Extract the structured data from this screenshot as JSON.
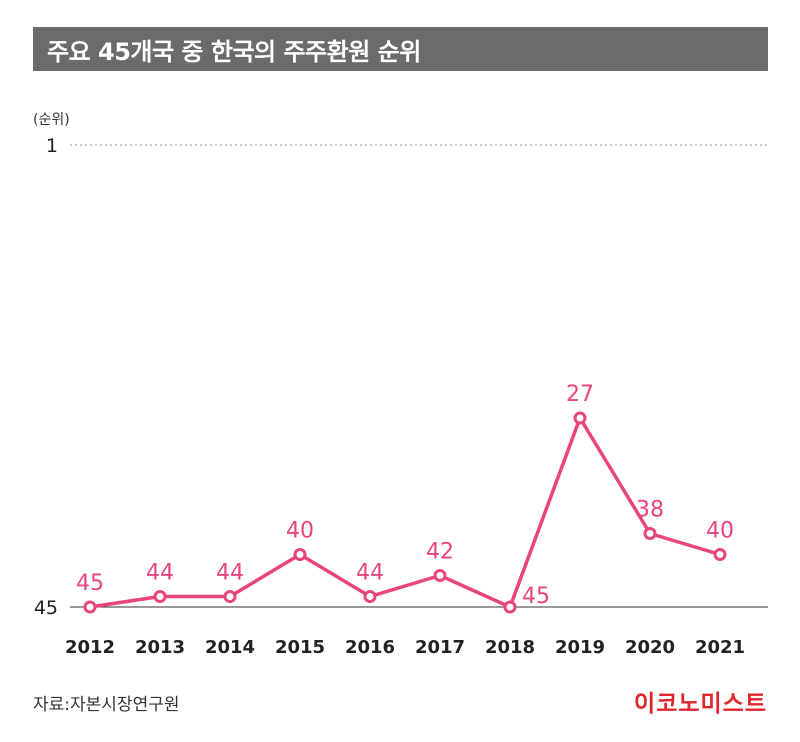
{
  "title": "주요 45개국 중 한국의 주주환원 순위",
  "source": "자료:자본시장연구원",
  "brand": "이코노미스트",
  "colors": {
    "line": "#e8457a",
    "title_bg": "#6b6b6b",
    "brand": "#e0262c"
  },
  "chart_data": {
    "type": "line",
    "unit_label": "(순위)",
    "categories": [
      "2012",
      "2013",
      "2014",
      "2015",
      "2016",
      "2017",
      "2018",
      "2019",
      "2020",
      "2021"
    ],
    "series": [
      {
        "values": [
          45,
          44,
          44,
          40,
          44,
          42,
          45,
          27,
          38,
          40
        ]
      }
    ],
    "y_ticks": [
      1,
      45
    ],
    "ylim": [
      45,
      1
    ],
    "y_inverted": true,
    "gridline_at": 1,
    "baseline_at": 45
  }
}
